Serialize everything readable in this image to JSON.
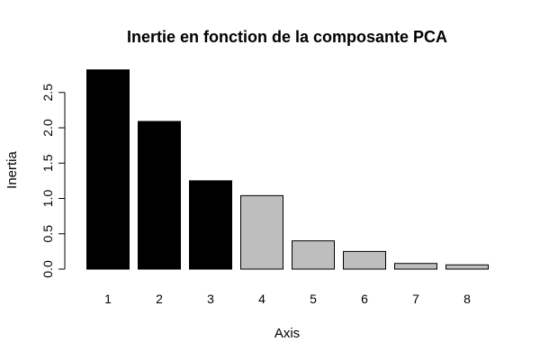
{
  "chart_data": {
    "type": "bar",
    "title": "Inertie en fonction de la composante PCA",
    "xlabel": "Axis",
    "ylabel": "Inertia",
    "categories": [
      "1",
      "2",
      "3",
      "4",
      "5",
      "6",
      "7",
      "8"
    ],
    "values": [
      2.82,
      2.09,
      1.25,
      1.04,
      0.4,
      0.25,
      0.08,
      0.06
    ],
    "bar_colors": [
      "#000000",
      "#000000",
      "#000000",
      "#bebebe",
      "#bebebe",
      "#bebebe",
      "#bebebe",
      "#bebebe"
    ],
    "y_ticks": [
      "0.0",
      "0.5",
      "1.0",
      "1.5",
      "2.0",
      "2.5"
    ],
    "ylim": [
      0,
      2.82
    ],
    "grid": false,
    "legend": "none"
  }
}
